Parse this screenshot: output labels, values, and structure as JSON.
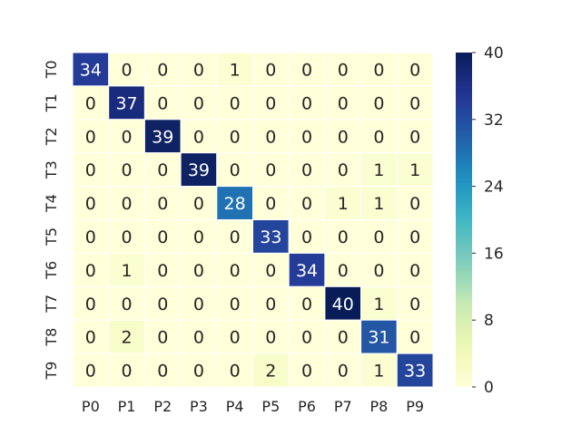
{
  "chart_data": {
    "type": "heatmap",
    "title": "",
    "xlabel": "",
    "ylabel": "",
    "x_categories": [
      "P0",
      "P1",
      "P2",
      "P3",
      "P4",
      "P5",
      "P6",
      "P7",
      "P8",
      "P9"
    ],
    "y_categories": [
      "T0",
      "T1",
      "T2",
      "T3",
      "T4",
      "T5",
      "T6",
      "T7",
      "T8",
      "T9"
    ],
    "values": [
      [
        34,
        0,
        0,
        0,
        1,
        0,
        0,
        0,
        0,
        0
      ],
      [
        0,
        37,
        0,
        0,
        0,
        0,
        0,
        0,
        0,
        0
      ],
      [
        0,
        0,
        39,
        0,
        0,
        0,
        0,
        0,
        0,
        0
      ],
      [
        0,
        0,
        0,
        39,
        0,
        0,
        0,
        0,
        1,
        1
      ],
      [
        0,
        0,
        0,
        0,
        28,
        0,
        0,
        1,
        1,
        0
      ],
      [
        0,
        0,
        0,
        0,
        0,
        33,
        0,
        0,
        0,
        0
      ],
      [
        0,
        1,
        0,
        0,
        0,
        0,
        34,
        0,
        0,
        0
      ],
      [
        0,
        0,
        0,
        0,
        0,
        0,
        0,
        40,
        1,
        0
      ],
      [
        0,
        2,
        0,
        0,
        0,
        0,
        0,
        0,
        31,
        0
      ],
      [
        0,
        0,
        0,
        0,
        0,
        2,
        0,
        0,
        1,
        33
      ]
    ],
    "colormap": "YlGnBu",
    "colorbar": {
      "min": 0,
      "max": 40,
      "ticks": [
        "0",
        "8",
        "16",
        "24",
        "32",
        "40"
      ]
    },
    "annotations": true,
    "grid": false
  }
}
